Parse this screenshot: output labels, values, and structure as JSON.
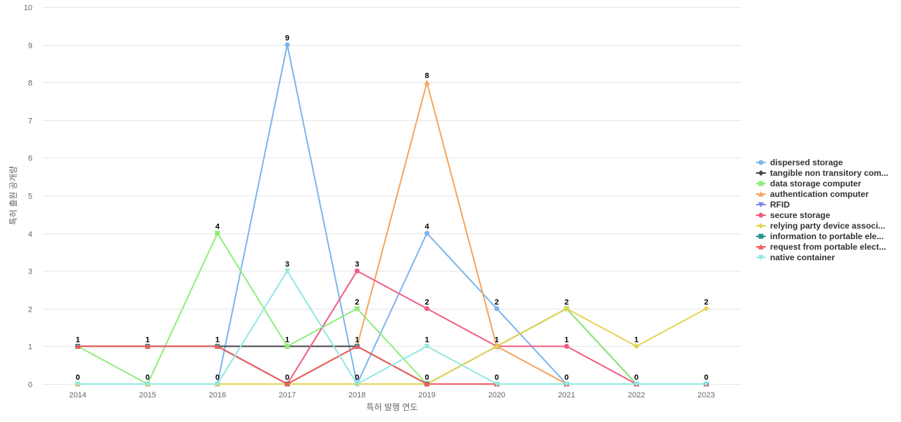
{
  "chart_data": {
    "type": "line",
    "xlabel": "특허 발행 연도",
    "ylabel": "특허 출원 공개량",
    "ylim": [
      0,
      10
    ],
    "yticks": [
      0,
      1,
      2,
      3,
      4,
      5,
      6,
      7,
      8,
      9,
      10
    ],
    "x": [
      "2014",
      "2015",
      "2016",
      "2017",
      "2018",
      "2019",
      "2020",
      "2021",
      "2022",
      "2023"
    ],
    "grid": true,
    "legend_position": "right",
    "series": [
      {
        "name": "dispersed storage",
        "color": "#7cb5ec",
        "marker": "circle",
        "values": [
          0,
          0,
          0,
          9,
          0,
          4,
          2,
          0,
          0,
          0
        ]
      },
      {
        "name": "tangible non transitory com...",
        "color": "#434348",
        "marker": "diamond",
        "values": [
          1,
          1,
          1,
          1,
          1,
          0,
          1,
          2,
          0,
          0
        ]
      },
      {
        "name": "data storage computer",
        "color": "#90ed7d",
        "marker": "square",
        "values": [
          1,
          0,
          4,
          1,
          2,
          0,
          1,
          2,
          0,
          0
        ]
      },
      {
        "name": "authentication computer",
        "color": "#f7a35c",
        "marker": "triangle",
        "values": [
          0,
          0,
          0,
          0,
          1,
          8,
          1,
          0,
          0,
          0
        ]
      },
      {
        "name": "RFID",
        "color": "#8085e9",
        "marker": "triangle-down",
        "values": [
          0,
          0,
          0,
          0,
          0,
          0,
          0,
          0,
          0,
          0
        ]
      },
      {
        "name": "secure storage",
        "color": "#f15c80",
        "marker": "circle",
        "values": [
          1,
          1,
          1,
          0,
          3,
          2,
          1,
          1,
          0,
          0
        ]
      },
      {
        "name": "relying party device associ...",
        "color": "#e4d354",
        "marker": "diamond",
        "values": [
          0,
          0,
          0,
          0,
          0,
          0,
          1,
          2,
          1,
          2
        ]
      },
      {
        "name": "information to portable ele...",
        "color": "#2b908f",
        "marker": "square",
        "values": [
          1,
          1,
          1,
          0,
          1,
          0,
          0,
          0,
          0,
          0
        ]
      },
      {
        "name": "request from portable elect...",
        "color": "#f45b5b",
        "marker": "triangle",
        "values": [
          1,
          1,
          1,
          0,
          1,
          0,
          0,
          0,
          0,
          0
        ]
      },
      {
        "name": "native container",
        "color": "#91e8e1",
        "marker": "triangle-down",
        "values": [
          0,
          0,
          0,
          3,
          0,
          1,
          0,
          0,
          0,
          0
        ]
      }
    ],
    "data_labels": [
      {
        "x": "2014",
        "value": 1
      },
      {
        "x": "2014",
        "value": 0
      },
      {
        "x": "2015",
        "value": 1
      },
      {
        "x": "2015",
        "value": 0
      },
      {
        "x": "2016",
        "value": 4
      },
      {
        "x": "2016",
        "value": 1
      },
      {
        "x": "2016",
        "value": 0
      },
      {
        "x": "2017",
        "value": 9
      },
      {
        "x": "2017",
        "value": 3
      },
      {
        "x": "2017",
        "value": 1
      },
      {
        "x": "2017",
        "value": 0
      },
      {
        "x": "2018",
        "value": 3
      },
      {
        "x": "2018",
        "value": 2
      },
      {
        "x": "2018",
        "value": 1
      },
      {
        "x": "2018",
        "value": 0
      },
      {
        "x": "2019",
        "value": 8
      },
      {
        "x": "2019",
        "value": 4
      },
      {
        "x": "2019",
        "value": 2
      },
      {
        "x": "2019",
        "value": 1
      },
      {
        "x": "2019",
        "value": 0
      },
      {
        "x": "2020",
        "value": 2
      },
      {
        "x": "2020",
        "value": 1
      },
      {
        "x": "2020",
        "value": 0
      },
      {
        "x": "2021",
        "value": 2
      },
      {
        "x": "2021",
        "value": 1
      },
      {
        "x": "2021",
        "value": 0
      },
      {
        "x": "2022",
        "value": 1
      },
      {
        "x": "2022",
        "value": 0
      },
      {
        "x": "2023",
        "value": 2
      },
      {
        "x": "2023",
        "value": 0
      }
    ]
  }
}
